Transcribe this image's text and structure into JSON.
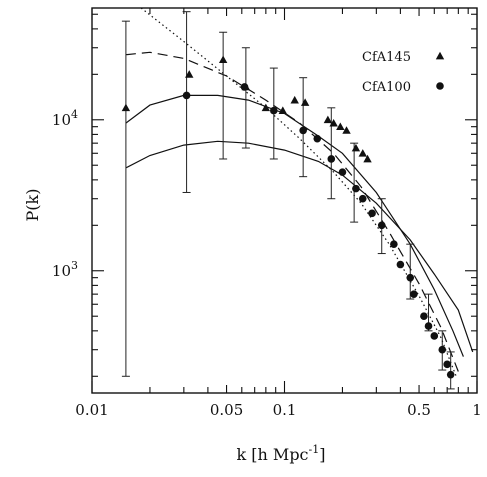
{
  "chart_data": {
    "type": "scatter",
    "title": "",
    "xlabel": "k [h Mpc",
    "xlabel_sup": "-1",
    "xlabel_close": "]",
    "ylabel": "P(k)",
    "xscale": "log",
    "yscale": "log",
    "xlim": [
      0.01,
      1.0
    ],
    "ylim": [
      155,
      55000
    ],
    "grid": false,
    "legend_position": "top-right",
    "x_ticks": [
      {
        "value": 0.01,
        "label": "0.01"
      },
      {
        "value": 0.05,
        "label": "0.05"
      },
      {
        "value": 0.1,
        "label": "0.1"
      },
      {
        "value": 0.5,
        "label": "0.5"
      },
      {
        "value": 1.0,
        "label": "1"
      }
    ],
    "y_ticks": [
      {
        "value": 1000,
        "base": "10",
        "exp": "3"
      },
      {
        "value": 10000,
        "base": "10",
        "exp": "4"
      }
    ],
    "series": [
      {
        "name": "CfA145",
        "marker": "triangle",
        "points": [
          [
            0.015,
            12000
          ],
          [
            0.032,
            20000
          ],
          [
            0.048,
            25000
          ],
          [
            0.063,
            16500
          ],
          [
            0.08,
            12000
          ],
          [
            0.098,
            11500
          ],
          [
            0.113,
            13500
          ],
          [
            0.128,
            13000
          ],
          [
            0.168,
            10000
          ],
          [
            0.18,
            9500
          ],
          [
            0.195,
            9000
          ],
          [
            0.21,
            8500
          ],
          [
            0.235,
            6500
          ],
          [
            0.255,
            6000
          ],
          [
            0.27,
            5500
          ]
        ]
      },
      {
        "name": "CfA100",
        "marker": "circle",
        "points": [
          [
            0.031,
            14500
          ],
          [
            0.062,
            16500
          ],
          [
            0.088,
            11500
          ],
          [
            0.125,
            8500
          ],
          [
            0.148,
            7500
          ],
          [
            0.175,
            5500
          ],
          [
            0.2,
            4500
          ],
          [
            0.235,
            3500
          ],
          [
            0.255,
            3000
          ],
          [
            0.285,
            2400
          ],
          [
            0.32,
            2000
          ],
          [
            0.37,
            1500
          ],
          [
            0.4,
            1100
          ],
          [
            0.45,
            900
          ],
          [
            0.47,
            700
          ],
          [
            0.53,
            500
          ],
          [
            0.56,
            430
          ],
          [
            0.6,
            370
          ],
          [
            0.66,
            300
          ],
          [
            0.7,
            240
          ],
          [
            0.73,
            205
          ]
        ]
      }
    ],
    "error_bars": [
      {
        "x": 0.015,
        "lo": 200,
        "hi": 45000
      },
      {
        "x": 0.031,
        "lo": 3300,
        "hi": 52000
      },
      {
        "x": 0.048,
        "lo": 5500,
        "hi": 38000
      },
      {
        "x": 0.063,
        "lo": 6500,
        "hi": 30000
      },
      {
        "x": 0.088,
        "lo": 5500,
        "hi": 22000
      },
      {
        "x": 0.125,
        "lo": 4200,
        "hi": 19000
      },
      {
        "x": 0.175,
        "lo": 3000,
        "hi": 12000
      },
      {
        "x": 0.23,
        "lo": 2100,
        "hi": 7000
      },
      {
        "x": 0.32,
        "lo": 1300,
        "hi": 3000
      },
      {
        "x": 0.45,
        "lo": 650,
        "hi": 1500
      },
      {
        "x": 0.56,
        "lo": 400,
        "hi": 700
      },
      {
        "x": 0.66,
        "lo": 220,
        "hi": 400
      },
      {
        "x": 0.73,
        "lo": 165,
        "hi": 290
      }
    ],
    "models": [
      {
        "style": "dashed",
        "points": [
          [
            0.015,
            27000
          ],
          [
            0.02,
            28000
          ],
          [
            0.03,
            25500
          ],
          [
            0.05,
            19500
          ],
          [
            0.08,
            13500
          ],
          [
            0.12,
            9500
          ],
          [
            0.18,
            6000
          ],
          [
            0.25,
            3600
          ],
          [
            0.35,
            1800
          ],
          [
            0.5,
            820
          ],
          [
            0.65,
            420
          ],
          [
            0.8,
            215
          ]
        ]
      },
      {
        "style": "dotted",
        "points": [
          [
            0.018,
            55000
          ],
          [
            0.03,
            33000
          ],
          [
            0.05,
            19500
          ],
          [
            0.08,
            12000
          ],
          [
            0.12,
            7500
          ],
          [
            0.18,
            4500
          ],
          [
            0.25,
            2800
          ],
          [
            0.35,
            1500
          ],
          [
            0.5,
            680
          ],
          [
            0.65,
            360
          ],
          [
            0.78,
            200
          ]
        ]
      },
      {
        "style": "solid",
        "points": [
          [
            0.015,
            9500
          ],
          [
            0.02,
            12500
          ],
          [
            0.03,
            14500
          ],
          [
            0.045,
            14500
          ],
          [
            0.065,
            13500
          ],
          [
            0.1,
            11000
          ],
          [
            0.15,
            7800
          ],
          [
            0.2,
            6000
          ],
          [
            0.3,
            3300
          ],
          [
            0.45,
            1500
          ],
          [
            0.6,
            750
          ],
          [
            0.75,
            400
          ],
          [
            0.85,
            270
          ]
        ]
      },
      {
        "style": "solid",
        "points": [
          [
            0.015,
            4800
          ],
          [
            0.02,
            5800
          ],
          [
            0.03,
            6800
          ],
          [
            0.045,
            7200
          ],
          [
            0.065,
            7000
          ],
          [
            0.1,
            6300
          ],
          [
            0.15,
            5300
          ],
          [
            0.2,
            4300
          ],
          [
            0.3,
            2800
          ],
          [
            0.45,
            1600
          ],
          [
            0.6,
            950
          ],
          [
            0.8,
            550
          ],
          [
            0.95,
            290
          ]
        ]
      }
    ]
  }
}
